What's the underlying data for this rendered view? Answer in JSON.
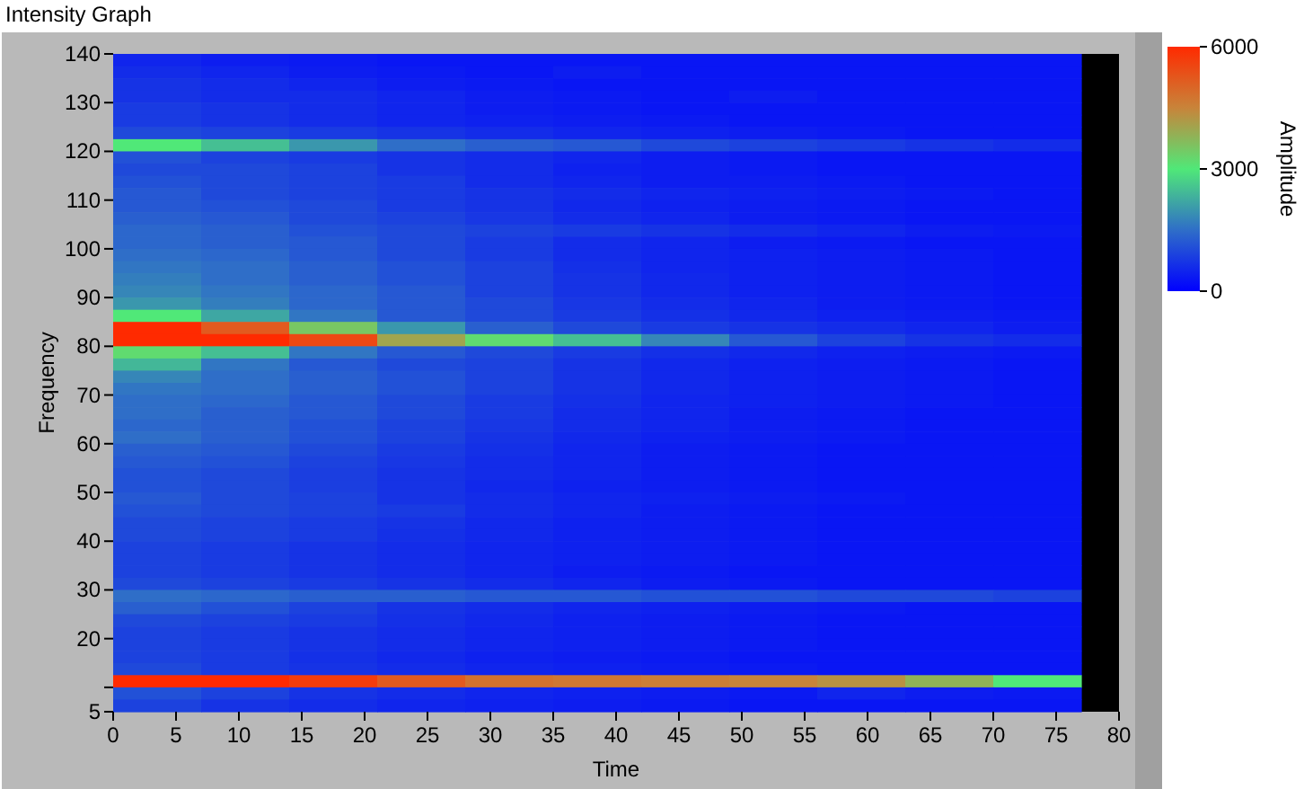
{
  "chart_data": {
    "type": "heatmap",
    "title": "Intensity Graph",
    "xlabel": "Time",
    "ylabel": "Frequency",
    "clabel": "Amplitude",
    "x": [
      3.5,
      10.5,
      17.5,
      24.5,
      31.5,
      38.5,
      45.5,
      52.5,
      59.5,
      66.5,
      73.5
    ],
    "y": [
      138.75,
      136.25,
      133.75,
      131.25,
      128.75,
      126.25,
      123.75,
      121.25,
      118.75,
      116.25,
      113.75,
      111.25,
      108.75,
      106.25,
      103.75,
      101.25,
      98.75,
      96.25,
      93.75,
      91.25,
      88.75,
      86.25,
      83.75,
      81.25,
      78.75,
      76.25,
      73.75,
      71.25,
      68.75,
      66.25,
      63.75,
      61.25,
      58.75,
      56.25,
      53.75,
      51.25,
      48.75,
      46.25,
      43.75,
      41.25,
      38.75,
      36.25,
      33.75,
      31.25,
      28.75,
      26.25,
      23.75,
      21.25,
      18.75,
      16.25,
      13.75,
      11.25,
      8.75,
      6.25
    ],
    "cells": [
      [
        500,
        400,
        350,
        300,
        300,
        300,
        300,
        300,
        300,
        300,
        300
      ],
      [
        600,
        500,
        400,
        350,
        300,
        400,
        300,
        300,
        300,
        300,
        300
      ],
      [
        700,
        600,
        500,
        400,
        350,
        300,
        300,
        300,
        300,
        300,
        300
      ],
      [
        700,
        600,
        600,
        500,
        400,
        350,
        300,
        400,
        300,
        300,
        300
      ],
      [
        800,
        700,
        600,
        500,
        400,
        350,
        300,
        300,
        300,
        300,
        300
      ],
      [
        800,
        700,
        600,
        500,
        450,
        400,
        350,
        300,
        300,
        300,
        300
      ],
      [
        1000,
        900,
        800,
        700,
        600,
        500,
        450,
        400,
        350,
        300,
        300
      ],
      [
        3000,
        2500,
        2000,
        1500,
        1300,
        1200,
        1000,
        900,
        800,
        700,
        600
      ],
      [
        1100,
        900,
        800,
        700,
        600,
        500,
        400,
        350,
        300,
        300,
        300
      ],
      [
        1000,
        1000,
        900,
        700,
        600,
        450,
        400,
        350,
        300,
        300,
        300
      ],
      [
        1100,
        1000,
        900,
        800,
        600,
        500,
        400,
        400,
        350,
        300,
        300
      ],
      [
        1200,
        1000,
        900,
        800,
        700,
        600,
        500,
        450,
        400,
        350,
        300
      ],
      [
        1200,
        1100,
        1000,
        800,
        700,
        550,
        450,
        400,
        350,
        300,
        300
      ],
      [
        1300,
        1200,
        1000,
        900,
        750,
        600,
        500,
        400,
        350,
        300,
        300
      ],
      [
        1400,
        1300,
        1100,
        1000,
        900,
        800,
        700,
        600,
        500,
        400,
        350
      ],
      [
        1400,
        1300,
        1200,
        1000,
        800,
        600,
        500,
        400,
        350,
        300,
        300
      ],
      [
        1500,
        1400,
        1200,
        1000,
        800,
        600,
        500,
        450,
        400,
        350,
        300
      ],
      [
        1600,
        1500,
        1300,
        1100,
        900,
        650,
        500,
        450,
        400,
        350,
        300
      ],
      [
        1700,
        1500,
        1300,
        1100,
        900,
        700,
        550,
        450,
        400,
        350,
        300
      ],
      [
        1800,
        1600,
        1400,
        1200,
        900,
        700,
        550,
        450,
        400,
        350,
        300
      ],
      [
        2000,
        1700,
        1400,
        1200,
        1000,
        750,
        600,
        500,
        400,
        350,
        300
      ],
      [
        3000,
        2200,
        1600,
        1200,
        1000,
        800,
        650,
        550,
        450,
        400,
        350
      ],
      [
        6000,
        5200,
        3500,
        2000,
        1300,
        1000,
        800,
        700,
        600,
        500,
        400
      ],
      [
        6000,
        6000,
        5500,
        4000,
        3200,
        2500,
        1800,
        1200,
        900,
        700,
        600
      ],
      [
        3200,
        2500,
        1600,
        1200,
        1000,
        800,
        650,
        550,
        450,
        400,
        350
      ],
      [
        2400,
        1600,
        1200,
        1000,
        900,
        700,
        550,
        450,
        400,
        350,
        300
      ],
      [
        1800,
        1500,
        1300,
        1100,
        900,
        700,
        550,
        450,
        400,
        350,
        300
      ],
      [
        1600,
        1500,
        1300,
        1100,
        900,
        700,
        550,
        450,
        400,
        350,
        300
      ],
      [
        1500,
        1400,
        1200,
        1000,
        800,
        650,
        500,
        450,
        400,
        350,
        300
      ],
      [
        1500,
        1300,
        1200,
        1000,
        800,
        600,
        500,
        400,
        350,
        300,
        300
      ],
      [
        1400,
        1300,
        1100,
        900,
        750,
        600,
        500,
        400,
        350,
        300,
        300
      ],
      [
        1500,
        1300,
        1100,
        900,
        700,
        550,
        450,
        400,
        350,
        300,
        300
      ],
      [
        1300,
        1200,
        1000,
        800,
        650,
        500,
        400,
        350,
        300,
        300,
        300
      ],
      [
        1200,
        1100,
        900,
        750,
        600,
        500,
        400,
        350,
        300,
        300,
        300
      ],
      [
        1100,
        1000,
        850,
        700,
        600,
        500,
        400,
        350,
        300,
        300,
        300
      ],
      [
        1100,
        1000,
        850,
        700,
        550,
        450,
        400,
        350,
        300,
        300,
        300
      ],
      [
        1200,
        1000,
        900,
        700,
        600,
        500,
        450,
        400,
        350,
        300,
        300
      ],
      [
        1100,
        1000,
        900,
        800,
        600,
        500,
        400,
        350,
        300,
        300,
        300
      ],
      [
        1000,
        900,
        800,
        700,
        550,
        450,
        400,
        350,
        300,
        300,
        300
      ],
      [
        1000,
        900,
        800,
        650,
        550,
        450,
        400,
        350,
        300,
        300,
        300
      ],
      [
        900,
        800,
        700,
        600,
        500,
        450,
        400,
        350,
        300,
        300,
        300
      ],
      [
        900,
        800,
        700,
        600,
        500,
        450,
        400,
        350,
        300,
        300,
        300
      ],
      [
        900,
        800,
        700,
        600,
        500,
        400,
        350,
        300,
        300,
        300,
        300
      ],
      [
        1000,
        900,
        800,
        700,
        600,
        500,
        400,
        350,
        300,
        300,
        300
      ],
      [
        1500,
        1400,
        1300,
        1300,
        1200,
        1200,
        1100,
        1100,
        1000,
        1000,
        900
      ],
      [
        1300,
        1100,
        900,
        700,
        600,
        500,
        450,
        400,
        350,
        300,
        300
      ],
      [
        1000,
        900,
        800,
        650,
        550,
        450,
        400,
        350,
        300,
        300,
        300
      ],
      [
        900,
        800,
        700,
        600,
        500,
        450,
        400,
        350,
        300,
        300,
        300
      ],
      [
        900,
        800,
        700,
        600,
        500,
        450,
        400,
        350,
        300,
        300,
        300
      ],
      [
        900,
        800,
        650,
        550,
        450,
        400,
        350,
        300,
        300,
        300,
        300
      ],
      [
        1000,
        800,
        700,
        600,
        500,
        450,
        400,
        350,
        300,
        300,
        300
      ],
      [
        6000,
        6000,
        5700,
        5200,
        4800,
        4700,
        4600,
        4500,
        4300,
        3800,
        3000
      ],
      [
        1100,
        900,
        700,
        600,
        500,
        450,
        400,
        350,
        500,
        400,
        350
      ],
      [
        900,
        700,
        600,
        500,
        450,
        400,
        350,
        300,
        300,
        300,
        300
      ]
    ],
    "xlim": [
      0,
      80
    ],
    "xticks": [
      0,
      5,
      10,
      15,
      20,
      25,
      30,
      35,
      40,
      45,
      50,
      55,
      60,
      65,
      70,
      75,
      80
    ],
    "ylim": [
      5,
      140
    ],
    "yticks": [
      5,
      {
        "value": 10,
        "label": null
      },
      20,
      30,
      40,
      50,
      60,
      70,
      80,
      90,
      100,
      110,
      120,
      130,
      140
    ],
    "clim": [
      0,
      6000
    ],
    "cticks": [
      0,
      3000,
      6000
    ]
  }
}
